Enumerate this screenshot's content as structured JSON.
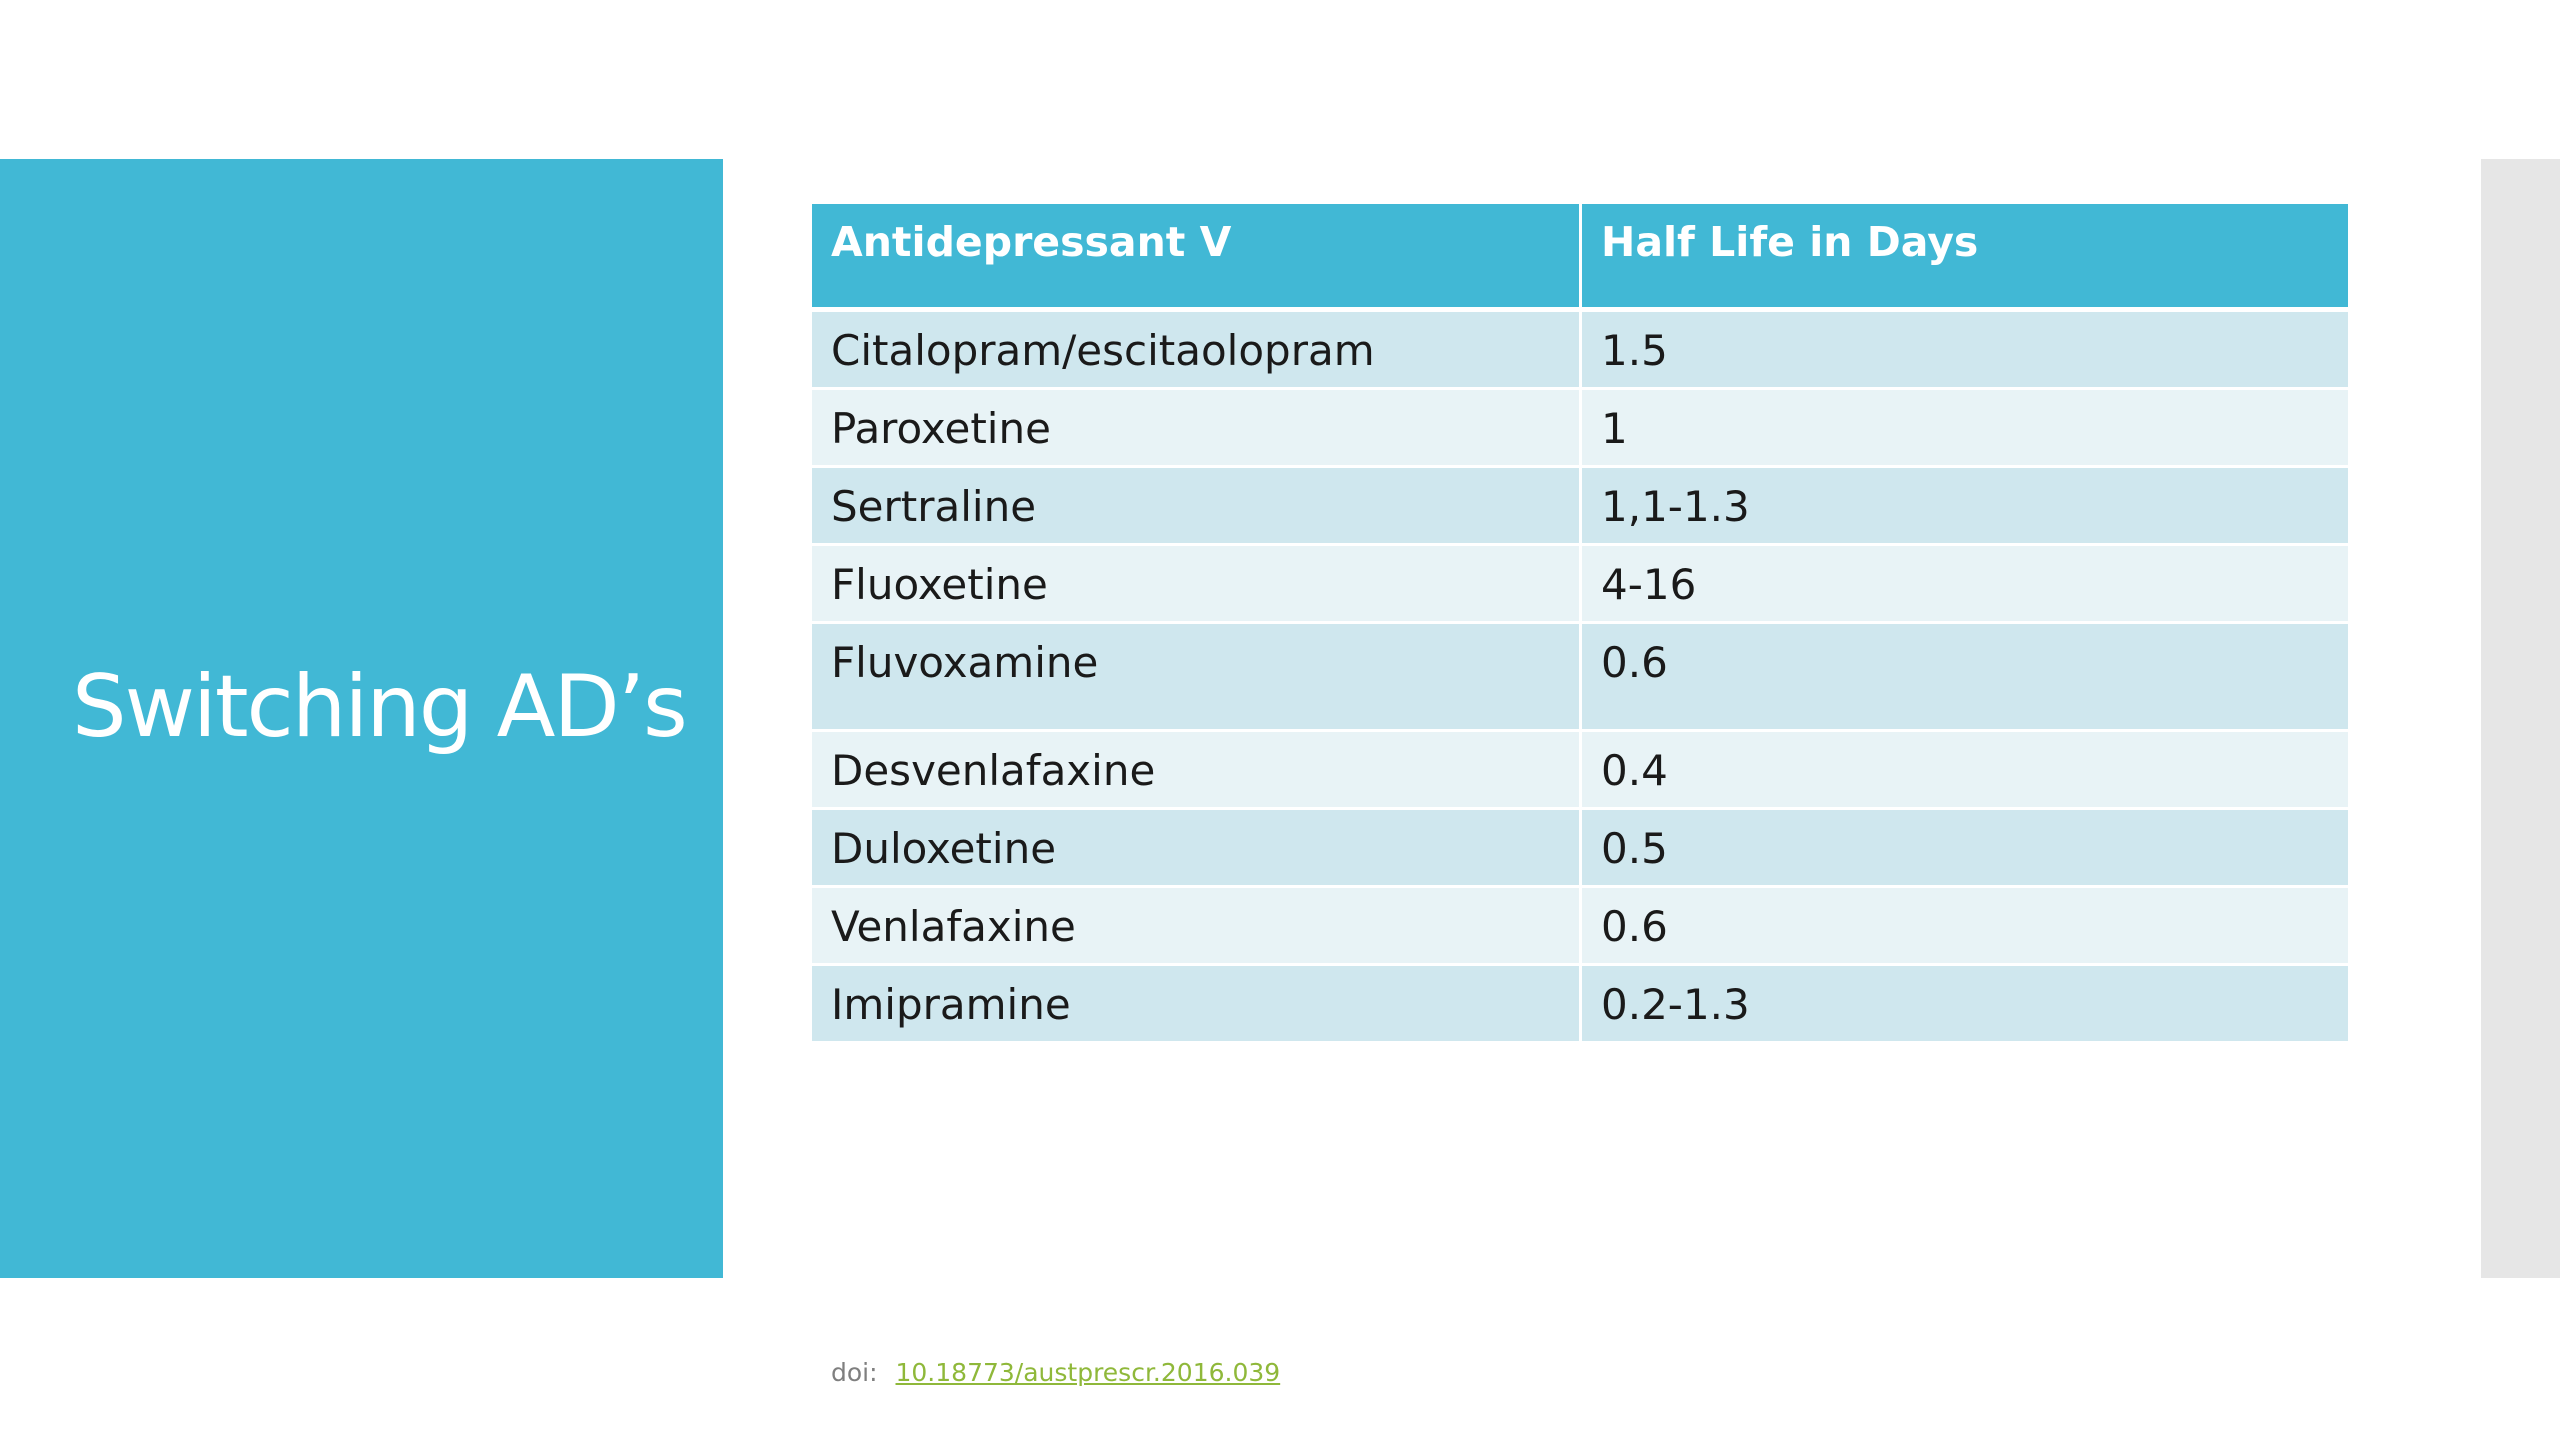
{
  "slide": {
    "title": "Switching AD’s"
  },
  "table": {
    "headers": [
      "Antidepressant V",
      "Half Life in Days"
    ],
    "rows": [
      {
        "drug": "Citalopram/escitaolopram",
        "half_life": "1.5"
      },
      {
        "drug": "Paroxetine",
        "half_life": "1"
      },
      {
        "drug": "Sertraline",
        "half_life": "1,1-1.3"
      },
      {
        "drug": "Fluoxetine",
        "half_life": "4-16"
      },
      {
        "drug": "Fluvoxamine",
        "half_life": "0.6"
      },
      {
        "drug": "Desvenlafaxine",
        "half_life": "0.4"
      },
      {
        "drug": "Duloxetine",
        "half_life": "0.5"
      },
      {
        "drug": "Venlafaxine",
        "half_life": "0.6"
      },
      {
        "drug": "Imipramine",
        "half_life": "0.2-1.3"
      }
    ]
  },
  "citation": {
    "label": "doi:",
    "link_text": "10.18773/austprescr.2016.039"
  },
  "colors": {
    "accent": "#41b8d5",
    "row_dark": "#cfe7ee",
    "row_light": "#e8f3f6",
    "link": "#8fb83a",
    "side_strip": "#e6e6e6"
  }
}
